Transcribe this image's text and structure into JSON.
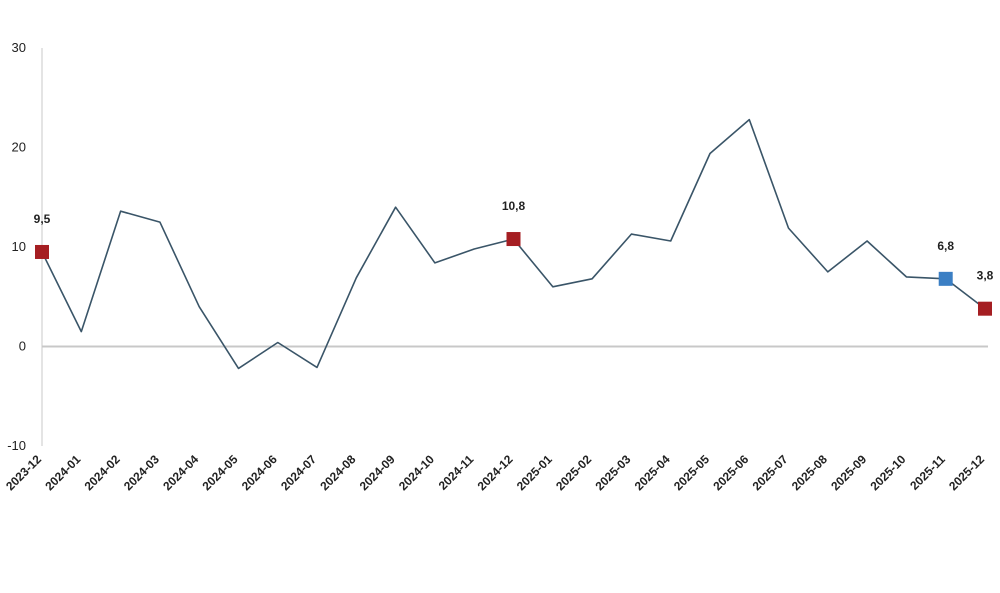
{
  "chart_data": {
    "type": "line",
    "title": "",
    "xlabel": "",
    "ylabel": "",
    "ylim": [
      -10,
      30
    ],
    "yticks": [
      "30",
      "20",
      "10",
      "0",
      "-10"
    ],
    "grid": false,
    "legend": "none",
    "categories": [
      "2023-12",
      "2024-01",
      "2024-02",
      "2024-03",
      "2024-04",
      "2024-05",
      "2024-06",
      "2024-07",
      "2024-08",
      "2024-09",
      "2024-10",
      "2024-11",
      "2024-12",
      "2025-01",
      "2025-02",
      "2025-03",
      "2025-04",
      "2025-05",
      "2025-06",
      "2025-07",
      "2025-08",
      "2025-09",
      "2025-10",
      "2025-11",
      "2025-12"
    ],
    "series": [
      {
        "values": [
          9.5,
          1.5,
          13.6,
          12.5,
          4.0,
          -2.2,
          0.4,
          -2.1,
          6.9,
          14.0,
          8.4,
          9.8,
          10.8,
          6.0,
          6.8,
          11.3,
          10.6,
          19.4,
          22.8,
          11.9,
          7.5,
          10.6,
          7.0,
          6.8,
          3.8
        ],
        "color": "#3a5568"
      }
    ],
    "highlighted_points": [
      {
        "index": 0,
        "label": "9,5",
        "color": "#a51e22"
      },
      {
        "index": 12,
        "label": "10,8",
        "color": "#a51e22"
      },
      {
        "index": 23,
        "label": "6,8",
        "color": "#3b7fc4"
      },
      {
        "index": 24,
        "label": "3,8",
        "color": "#a51e22"
      }
    ],
    "colors": {
      "line": "#3a5568",
      "zero_line": "#c8c8c8",
      "axis": "#c8c8c8"
    }
  }
}
